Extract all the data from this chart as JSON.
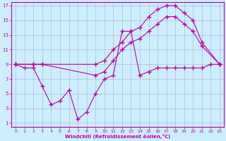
{
  "xlabel": "Windchill (Refroidissement éolien,°C)",
  "bg_color": "#cceeff",
  "line_color": "#bb00aa",
  "xlim": [
    -0.5,
    23.5
  ],
  "ylim": [
    0.5,
    17.5
  ],
  "xticks": [
    0,
    1,
    2,
    3,
    4,
    5,
    6,
    7,
    8,
    9,
    10,
    11,
    12,
    13,
    14,
    15,
    16,
    17,
    18,
    19,
    20,
    21,
    22,
    23
  ],
  "yticks": [
    1,
    3,
    5,
    7,
    9,
    11,
    13,
    15,
    17
  ],
  "line1_x": [
    0,
    1,
    2,
    3,
    4,
    5,
    6,
    7,
    8,
    9,
    10,
    11,
    12,
    13,
    14,
    15,
    16,
    17,
    18,
    19,
    20,
    21,
    22,
    23
  ],
  "line1_y": [
    9,
    8.5,
    8.5,
    6,
    3.5,
    4,
    5.5,
    1.5,
    2.5,
    5,
    7,
    7.5,
    13.5,
    13.5,
    7.5,
    8,
    8.5,
    8.5,
    8.5,
    8.5,
    8.5,
    8.5,
    9,
    9
  ],
  "line2_x": [
    0,
    2,
    3,
    9,
    10,
    11,
    12,
    13,
    14,
    15,
    16,
    17,
    18,
    19,
    20,
    21,
    23
  ],
  "line2_y": [
    9,
    9,
    9,
    9,
    9.5,
    11,
    12,
    13.5,
    14,
    15.5,
    16.5,
    17,
    17,
    16,
    15,
    12,
    9
  ],
  "line3_x": [
    0,
    2,
    3,
    9,
    10,
    11,
    12,
    13,
    14,
    15,
    16,
    17,
    18,
    19,
    20,
    21,
    23
  ],
  "line3_y": [
    9,
    9,
    9,
    7.5,
    8,
    9.5,
    11,
    12,
    12.5,
    13.5,
    14.5,
    15.5,
    15.5,
    14.5,
    13.5,
    11.5,
    9
  ]
}
